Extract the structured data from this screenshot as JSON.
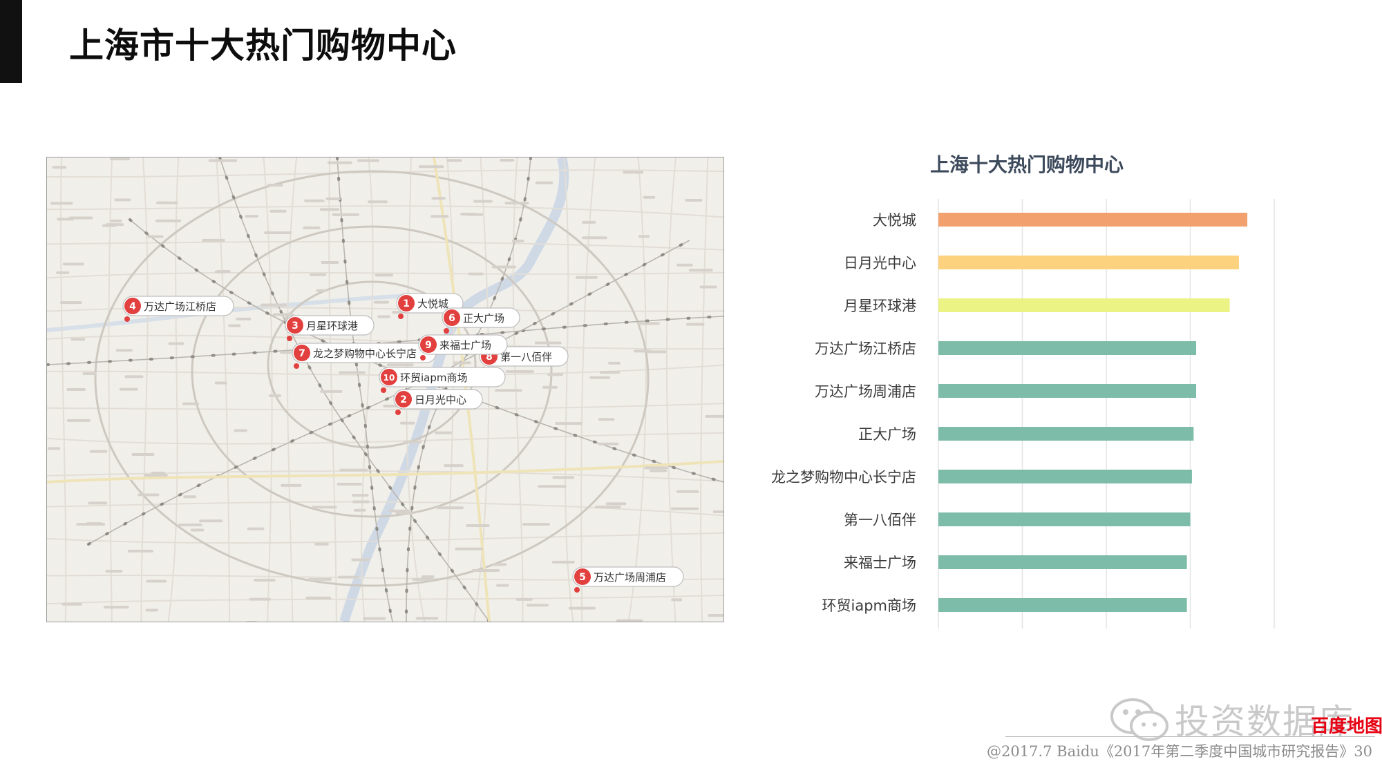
{
  "page": {
    "title": "上海市十大热门购物中心"
  },
  "map": {
    "markers": [
      {
        "rank": "1",
        "name": "大悦城"
      },
      {
        "rank": "2",
        "name": "日月光中心"
      },
      {
        "rank": "3",
        "name": "月星环球港"
      },
      {
        "rank": "4",
        "name": "万达广场江桥店"
      },
      {
        "rank": "5",
        "name": "万达广场周浦店"
      },
      {
        "rank": "6",
        "name": "正大广场"
      },
      {
        "rank": "7",
        "name": "龙之梦购物中心长宁店"
      },
      {
        "rank": "8",
        "name": "第一八佰伴"
      },
      {
        "rank": "9",
        "name": "来福士广场"
      },
      {
        "rank": "10",
        "name": "环贸iapm商场"
      }
    ],
    "marker_color": "#e2403e"
  },
  "chart_data": {
    "type": "bar",
    "orientation": "horizontal",
    "title": "上海十大热门购物中心",
    "categories": [
      "大悦城",
      "日月光中心",
      "月星环球港",
      "万达广场江桥店",
      "万达广场周浦店",
      "正大广场",
      "龙之梦购物中心长宁店",
      "第一八佰伴",
      "来福士广场",
      "环贸iapm商场"
    ],
    "values": [
      3.68,
      3.58,
      3.47,
      3.07,
      3.07,
      3.04,
      3.02,
      3.0,
      2.96,
      2.96
    ],
    "colors": [
      "#f2a06e",
      "#fcd27f",
      "#ecf385",
      "#7dbca8",
      "#7dbca8",
      "#7dbca8",
      "#7dbca8",
      "#7dbca8",
      "#7dbca8",
      "#7dbca8"
    ],
    "xlim": [
      0,
      4
    ],
    "grid": true,
    "legend": "none"
  },
  "footer": {
    "watermark": "投资数据库",
    "brand": "百度地图",
    "credit": "@2017.7 Baidu《2017年第二季度中国城市研究报告》30"
  }
}
